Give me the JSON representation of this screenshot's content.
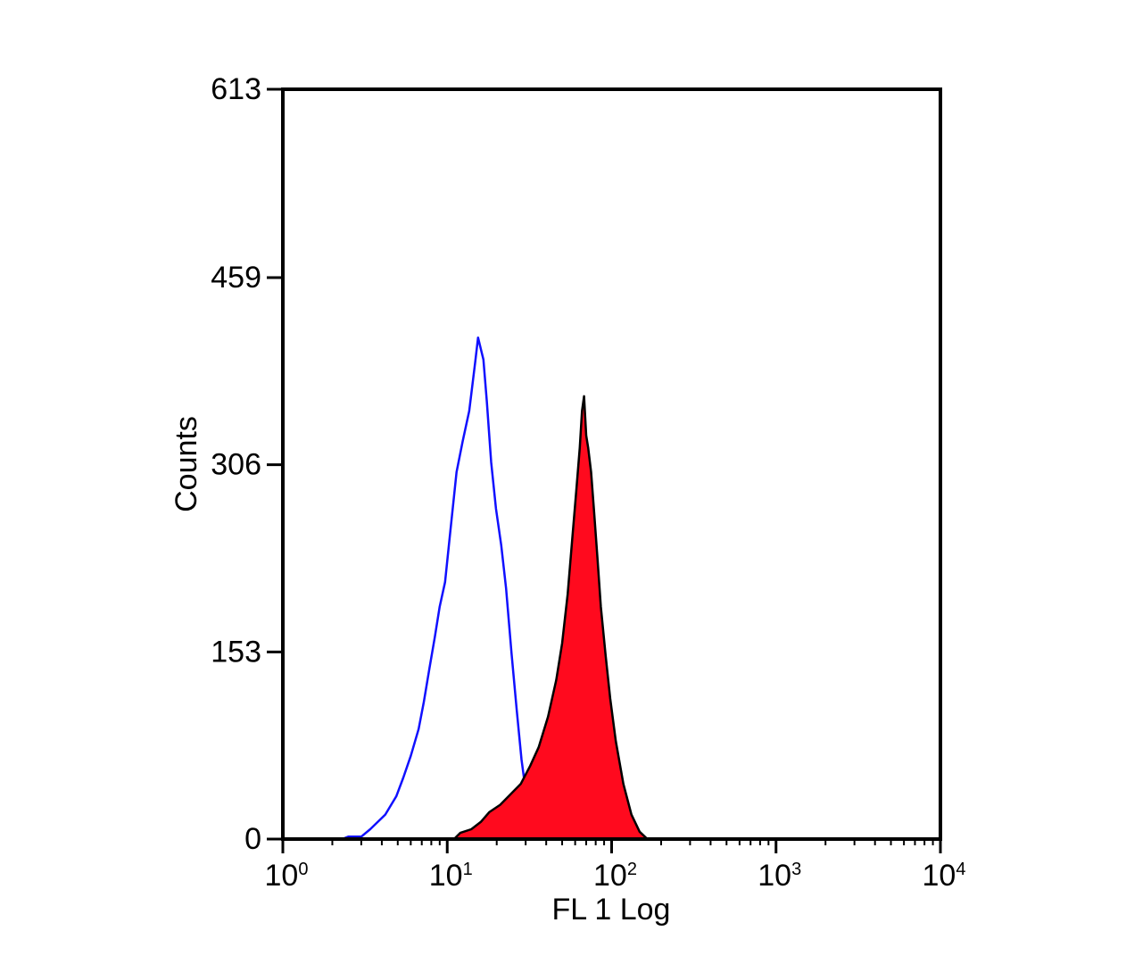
{
  "chart_data": {
    "type": "area",
    "xlabel": "FL 1 Log",
    "ylabel": "Counts",
    "x_scale": "log",
    "xlim": [
      1,
      10000
    ],
    "ylim": [
      0,
      613
    ],
    "x_ticks": [
      {
        "value": 1,
        "base": "10",
        "exp": "0"
      },
      {
        "value": 10,
        "base": "10",
        "exp": "1"
      },
      {
        "value": 100,
        "base": "10",
        "exp": "2"
      },
      {
        "value": 1000,
        "base": "10",
        "exp": "3"
      },
      {
        "value": 10000,
        "base": "10",
        "exp": "4"
      }
    ],
    "y_ticks": [
      0,
      153,
      306,
      459,
      613
    ],
    "grid": false,
    "series": [
      {
        "style": "outline",
        "color": "#1010ff",
        "points": [
          [
            2.3,
            0
          ],
          [
            2.5,
            2
          ],
          [
            3.0,
            2
          ],
          [
            3.4,
            8
          ],
          [
            4.2,
            20
          ],
          [
            4.9,
            35
          ],
          [
            5.4,
            50
          ],
          [
            6.0,
            68
          ],
          [
            6.7,
            90
          ],
          [
            7.2,
            112
          ],
          [
            7.8,
            140
          ],
          [
            8.4,
            165
          ],
          [
            9.0,
            190
          ],
          [
            9.7,
            210
          ],
          [
            10.5,
            255
          ],
          [
            11.4,
            300
          ],
          [
            12.4,
            325
          ],
          [
            13.6,
            350
          ],
          [
            14.8,
            390
          ],
          [
            15.4,
            410
          ],
          [
            16.6,
            392
          ],
          [
            17.4,
            358
          ],
          [
            18.5,
            308
          ],
          [
            19.8,
            270
          ],
          [
            21.3,
            240
          ],
          [
            22.8,
            205
          ],
          [
            24.6,
            152
          ],
          [
            26.5,
            105
          ],
          [
            28.3,
            65
          ],
          [
            30.3,
            35
          ],
          [
            32.5,
            15
          ],
          [
            36,
            5
          ],
          [
            40,
            2
          ],
          [
            48,
            1
          ],
          [
            56,
            0
          ]
        ]
      },
      {
        "style": "filled",
        "color": "#ff0a1e",
        "edge_color": "#000000",
        "points": [
          [
            11,
            0
          ],
          [
            12,
            5
          ],
          [
            14,
            8
          ],
          [
            16,
            14
          ],
          [
            18,
            22
          ],
          [
            21,
            28
          ],
          [
            24,
            36
          ],
          [
            28,
            45
          ],
          [
            32,
            60
          ],
          [
            36,
            75
          ],
          [
            41,
            100
          ],
          [
            46,
            130
          ],
          [
            50,
            160
          ],
          [
            54,
            200
          ],
          [
            58,
            250
          ],
          [
            61,
            285
          ],
          [
            64,
            320
          ],
          [
            66,
            350
          ],
          [
            68,
            362
          ],
          [
            70,
            330
          ],
          [
            72,
            320
          ],
          [
            75,
            300
          ],
          [
            78,
            270
          ],
          [
            82,
            230
          ],
          [
            86,
            190
          ],
          [
            92,
            150
          ],
          [
            98,
            115
          ],
          [
            106,
            80
          ],
          [
            118,
            45
          ],
          [
            132,
            20
          ],
          [
            148,
            6
          ],
          [
            165,
            0
          ]
        ]
      }
    ]
  }
}
